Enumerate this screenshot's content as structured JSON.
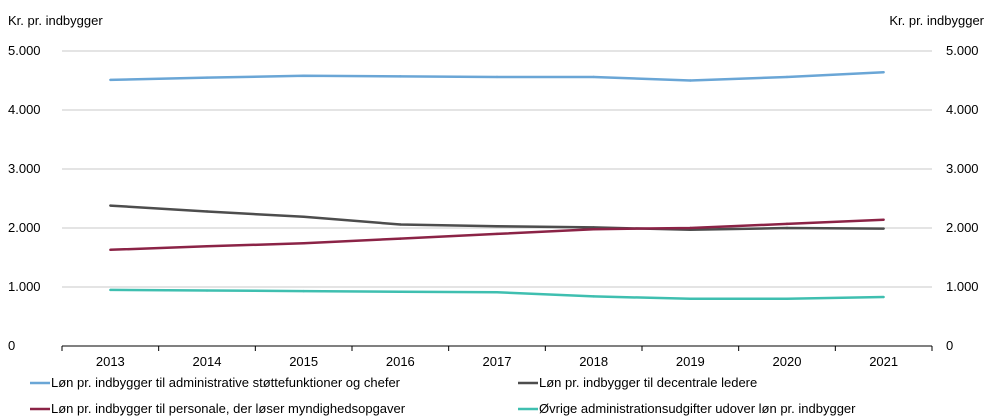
{
  "chart_data": {
    "type": "line",
    "y_axis_label_left": "Kr. pr. indbygger",
    "y_axis_label_right": "Kr. pr. indbygger",
    "ylim": [
      0,
      5000
    ],
    "y_ticks": [
      {
        "value": 0,
        "label": "0"
      },
      {
        "value": 1000,
        "label": "1.000"
      },
      {
        "value": 2000,
        "label": "2.000"
      },
      {
        "value": 3000,
        "label": "3.000"
      },
      {
        "value": 4000,
        "label": "4.000"
      },
      {
        "value": 5000,
        "label": "5.000"
      }
    ],
    "grid": true,
    "legend_position": "bottom",
    "categories": [
      "2013",
      "2014",
      "2015",
      "2016",
      "2017",
      "2018",
      "2019",
      "2020",
      "2021"
    ],
    "series": [
      {
        "name": "Løn pr. indbygger til administrative støttefunktioner og chefer",
        "color": "#6aa6d6",
        "values": [
          4510,
          4550,
          4580,
          4570,
          4560,
          4560,
          4500,
          4560,
          4640
        ]
      },
      {
        "name": "Løn pr. indbygger til decentrale ledere",
        "color": "#4d4d4d",
        "values": [
          2380,
          2280,
          2190,
          2060,
          2030,
          2010,
          1970,
          2000,
          1990
        ]
      },
      {
        "name": "Løn pr. indbygger til personale, der løser myndighedsopgaver",
        "color": "#8b2346",
        "values": [
          1630,
          1690,
          1740,
          1820,
          1900,
          1980,
          2000,
          2070,
          2140
        ]
      },
      {
        "name": "Øvrige administrationsudgifter udover løn pr. indbygger",
        "color": "#3fbfb0",
        "values": [
          950,
          940,
          930,
          920,
          910,
          840,
          800,
          800,
          830
        ]
      }
    ]
  }
}
